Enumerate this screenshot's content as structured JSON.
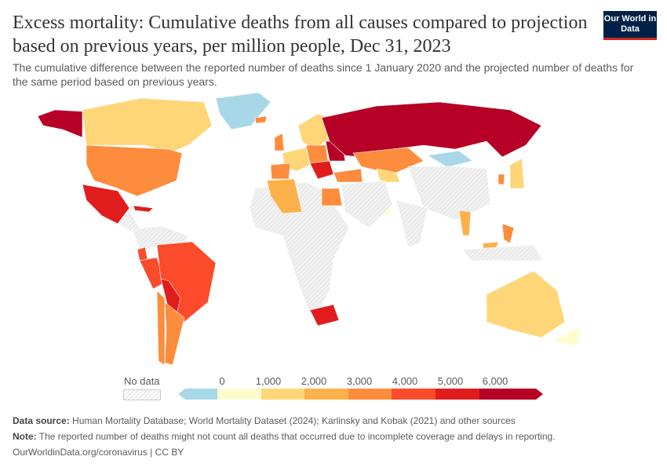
{
  "header": {
    "title": "Excess mortality: Cumulative deaths from all causes compared to projection based on previous years, per million people, Dec 31, 2023",
    "subtitle": "The cumulative difference between the reported number of deaths since 1 January 2020 and the projected number of deaths for the same period based on previous years.",
    "logo": "Our World in Data"
  },
  "legend": {
    "no_data_label": "No data",
    "ticks": [
      "0",
      "1,000",
      "2,000",
      "3,000",
      "4,000",
      "5,000",
      "6,000"
    ],
    "bins": [
      {
        "range": "< 0",
        "color": "#a8d8e8"
      },
      {
        "range": "0–1,000",
        "color": "#fefccc"
      },
      {
        "range": "1,000–2,000",
        "color": "#fed677"
      },
      {
        "range": "2,000–3,000",
        "color": "#fdb14b"
      },
      {
        "range": "3,000–4,000",
        "color": "#fd8c3c"
      },
      {
        "range": "4,000–5,000",
        "color": "#fb4b2b"
      },
      {
        "range": "5,000–6,000",
        "color": "#e01d1c"
      },
      {
        "range": "> 6,000",
        "color": "#b60026"
      }
    ],
    "no_data_color": "#eeeeee"
  },
  "footer": {
    "source_label": "Data source:",
    "source_text": " Human Mortality Database; World Mortality Dataset (2024); Karlinsky and Kobak (2021) and other sources",
    "note_label": "Note:",
    "note_text": " The reported number of deaths might not count all deaths that occurred due to incomplete coverage and delays in reporting.",
    "link": "OurWorldinData.org/coronavirus | CC BY"
  }
}
